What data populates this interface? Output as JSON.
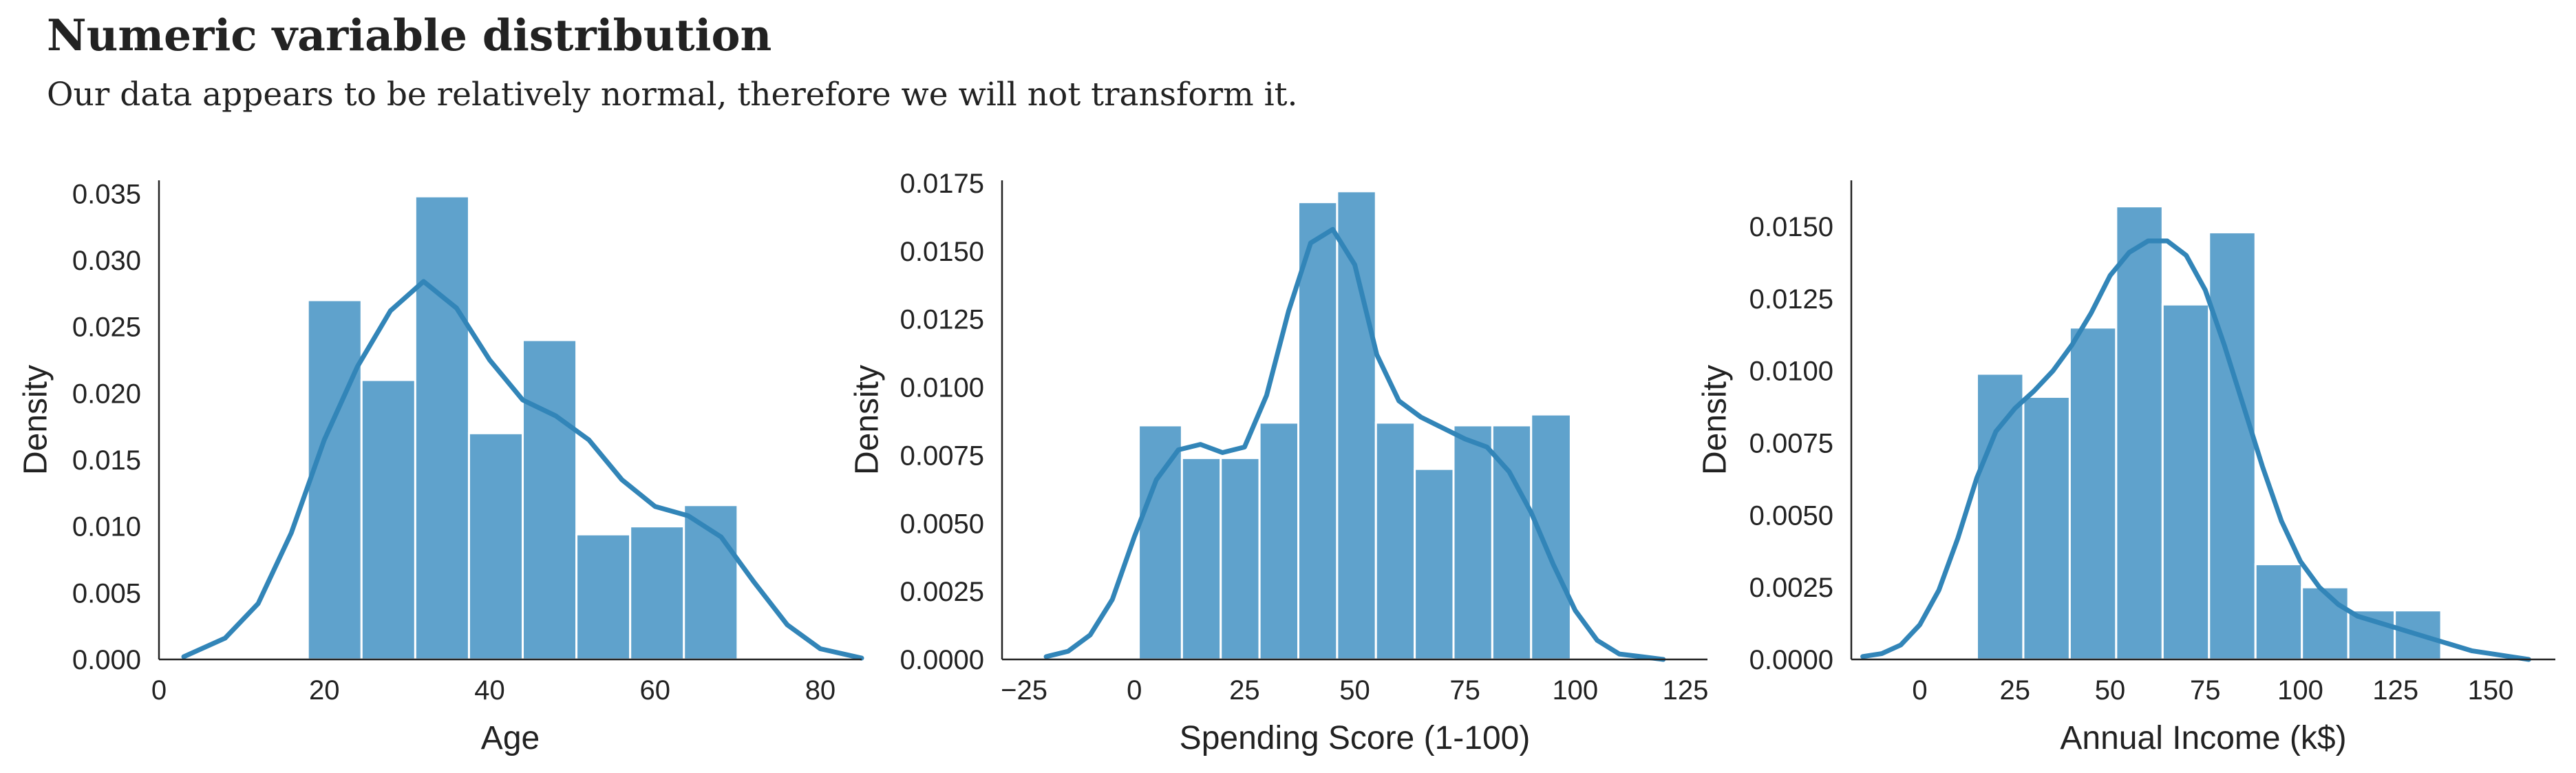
{
  "title": "Numeric variable distribution",
  "subtitle": "Our data appears to be relatively normal, therefore we will not transform it.",
  "colors": {
    "bar": "#5fa2cc",
    "bar_edge": "#ffffff",
    "kde": "#3285b8",
    "axis": "#222222"
  },
  "chart_data": [
    {
      "type": "bar",
      "xlabel": "Age",
      "ylabel": "Density",
      "xlim": [
        0,
        85
      ],
      "ylim": [
        0,
        0.036
      ],
      "xticks": [
        0,
        20,
        40,
        60,
        80
      ],
      "yticks": [
        0,
        0.005,
        0.01,
        0.015,
        0.02,
        0.025,
        0.03,
        0.035
      ],
      "ytick_decimals": 3,
      "bin_edges": [
        18,
        24.5,
        31,
        37.5,
        44,
        50.5,
        57,
        63.5,
        70
      ],
      "values": [
        0.027,
        0.021,
        0.0348,
        0.017,
        0.024,
        0.0094,
        0.01,
        0.0116
      ],
      "kde": {
        "x": [
          3,
          8,
          12,
          16,
          20,
          24,
          28,
          32,
          36,
          40,
          44,
          48,
          52,
          56,
          60,
          64,
          68,
          72,
          76,
          80,
          85
        ],
        "y": [
          0.0002,
          0.0016,
          0.0042,
          0.0095,
          0.0165,
          0.022,
          0.0262,
          0.0284,
          0.0264,
          0.0225,
          0.0195,
          0.0183,
          0.0165,
          0.0135,
          0.0115,
          0.0108,
          0.0092,
          0.0058,
          0.0026,
          0.0008,
          0.0001
        ]
      }
    },
    {
      "type": "bar",
      "xlabel": "Spending Score (1-100)",
      "ylabel": "Density",
      "xlim": [
        -30,
        130
      ],
      "ylim": [
        0,
        0.0176
      ],
      "xticks": [
        -25,
        0,
        25,
        50,
        75,
        100,
        125
      ],
      "yticks": [
        0,
        0.0025,
        0.005,
        0.0075,
        0.01,
        0.0125,
        0.015,
        0.0175
      ],
      "ytick_decimals": 4,
      "bin_edges": [
        1,
        10.8,
        19.6,
        28.4,
        37.2,
        46,
        54.8,
        63.6,
        72.4,
        81.2,
        90,
        99
      ],
      "values": [
        0.0086,
        0.0074,
        0.0074,
        0.0087,
        0.0168,
        0.0172,
        0.0087,
        0.007,
        0.0086,
        0.0086,
        0.009
      ],
      "kde": {
        "x": [
          -20,
          -15,
          -10,
          -5,
          0,
          5,
          10,
          15,
          20,
          25,
          30,
          35,
          40,
          45,
          50,
          55,
          60,
          65,
          70,
          75,
          80,
          85,
          90,
          95,
          100,
          105,
          110,
          115,
          120
        ],
        "y": [
          0.0001,
          0.0003,
          0.0009,
          0.0022,
          0.0045,
          0.0066,
          0.0077,
          0.0079,
          0.0076,
          0.0078,
          0.0097,
          0.0128,
          0.0153,
          0.0158,
          0.0145,
          0.0112,
          0.0095,
          0.0089,
          0.0085,
          0.0081,
          0.0078,
          0.0069,
          0.0054,
          0.0035,
          0.0018,
          0.0007,
          0.0002,
          0.0001,
          0
        ]
      }
    },
    {
      "type": "bar",
      "xlabel": "Annual Income (k$)",
      "ylabel": "Density",
      "xlim": [
        -18,
        167
      ],
      "ylim": [
        0,
        0.0166
      ],
      "xticks": [
        0,
        25,
        50,
        75,
        100,
        125,
        150
      ],
      "yticks": [
        0,
        0.0025,
        0.005,
        0.0075,
        0.01,
        0.0125,
        0.015
      ],
      "ytick_decimals": 4,
      "bin_edges": [
        15,
        27.2,
        39.4,
        51.6,
        63.8,
        76,
        88.2,
        100.4,
        112.6,
        124.8,
        137
      ],
      "values": [
        0.0099,
        0.0091,
        0.0115,
        0.0157,
        0.0123,
        0.0148,
        0.0033,
        0.0025,
        0.0017,
        0.0017
      ],
      "kde": {
        "x": [
          -15,
          -10,
          -5,
          0,
          5,
          10,
          15,
          20,
          25,
          30,
          35,
          40,
          45,
          50,
          55,
          60,
          65,
          70,
          75,
          80,
          85,
          90,
          95,
          100,
          105,
          110,
          115,
          120,
          125,
          130,
          135,
          140,
          145,
          150,
          155,
          160
        ],
        "y": [
          0.0001,
          0.0002,
          0.0005,
          0.0012,
          0.0024,
          0.0042,
          0.0063,
          0.0079,
          0.0087,
          0.0093,
          0.01,
          0.0109,
          0.012,
          0.0133,
          0.0141,
          0.0145,
          0.0145,
          0.014,
          0.0128,
          0.0109,
          0.0088,
          0.0067,
          0.0048,
          0.0034,
          0.0025,
          0.0019,
          0.0015,
          0.0013,
          0.0011,
          0.0009,
          0.0007,
          0.0005,
          0.0003,
          0.0002,
          0.0001,
          0
        ]
      }
    }
  ]
}
